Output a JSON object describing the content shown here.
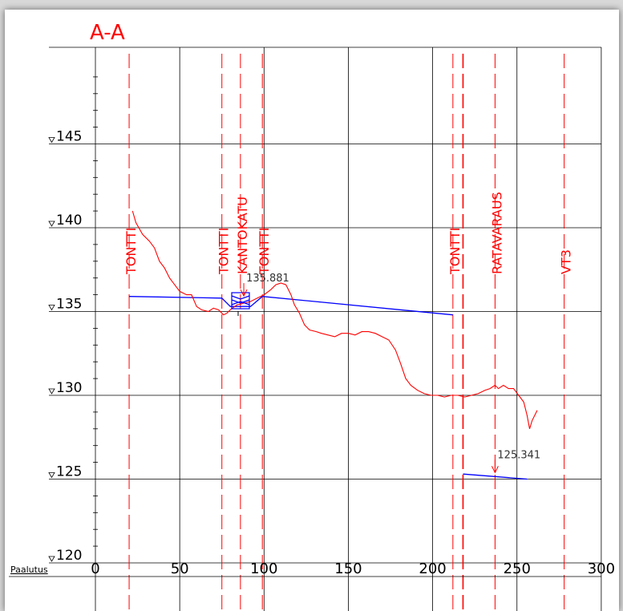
{
  "title": "A-A",
  "colors": {
    "grid": "#000000",
    "terrain": "#ff0000",
    "plan": "#0000ff",
    "boundary": "#ff0000",
    "text": "#000000"
  },
  "chart_data": {
    "type": "line",
    "xlabel": "Paalutus",
    "xlim": [
      0,
      300
    ],
    "ylim": [
      120,
      150
    ],
    "x_ticks": [
      0,
      50,
      100,
      150,
      200,
      250,
      300
    ],
    "y_ticks": [
      120,
      125,
      130,
      135,
      140,
      145
    ],
    "grid": true,
    "boundaries": [
      {
        "x": 20,
        "label": "TONTTI"
      },
      {
        "x": 75,
        "label": "TONTTI"
      },
      {
        "x": 86,
        "label": "KANTOKATU"
      },
      {
        "x": 99,
        "label": "TONTTI"
      },
      {
        "x": 212,
        "label": "TONTTI"
      },
      {
        "x": 218,
        "label": ""
      },
      {
        "x": 237,
        "label": "RATAVARAUS"
      },
      {
        "x": 278,
        "label": "VT3"
      }
    ],
    "annotations": [
      {
        "label": "135.881",
        "x": 88,
        "y": 135.881
      },
      {
        "label": "125.341",
        "x": 237,
        "y": 125.341
      }
    ],
    "series": [
      {
        "values": [
          [
            22,
            141
          ],
          [
            24,
            140.3
          ],
          [
            28,
            139.6
          ],
          [
            32,
            139.2
          ],
          [
            35,
            138.8
          ],
          [
            38,
            138.0
          ],
          [
            41,
            137.6
          ],
          [
            44,
            137.0
          ],
          [
            47,
            136.6
          ],
          [
            50,
            136.2
          ],
          [
            54,
            136.0
          ],
          [
            57,
            136.0
          ],
          [
            60,
            135.3
          ],
          [
            63,
            135.1
          ],
          [
            67,
            135.0
          ],
          [
            70,
            135.2
          ],
          [
            73,
            135.1
          ],
          [
            76,
            134.8
          ],
          [
            78,
            134.9
          ],
          [
            80,
            135.1
          ],
          [
            84,
            135.4
          ],
          [
            88,
            135.5
          ],
          [
            92,
            135.6
          ],
          [
            96,
            135.8
          ],
          [
            100,
            136.0
          ],
          [
            104,
            136.3
          ],
          [
            107,
            136.6
          ],
          [
            110,
            136.7
          ],
          [
            113,
            136.6
          ],
          [
            116,
            136.0
          ],
          [
            118,
            135.4
          ],
          [
            121,
            134.9
          ],
          [
            124,
            134.2
          ],
          [
            127,
            133.9
          ],
          [
            131,
            133.8
          ],
          [
            134,
            133.7
          ],
          [
            138,
            133.6
          ],
          [
            142,
            133.5
          ],
          [
            146,
            133.7
          ],
          [
            150,
            133.7
          ],
          [
            154,
            133.6
          ],
          [
            158,
            133.8
          ],
          [
            162,
            133.8
          ],
          [
            166,
            133.7
          ],
          [
            170,
            133.5
          ],
          [
            174,
            133.3
          ],
          [
            178,
            132.7
          ],
          [
            181,
            131.9
          ],
          [
            184,
            131.0
          ],
          [
            187,
            130.6
          ],
          [
            191,
            130.3
          ],
          [
            195,
            130.1
          ],
          [
            199,
            130.0
          ],
          [
            203,
            130.0
          ],
          [
            207,
            129.9
          ],
          [
            211,
            130.0
          ],
          [
            215,
            130.0
          ],
          [
            219,
            129.9
          ],
          [
            223,
            130.0
          ],
          [
            227,
            130.1
          ],
          [
            231,
            130.3
          ],
          [
            234,
            130.4
          ],
          [
            237,
            130.6
          ],
          [
            239,
            130.4
          ],
          [
            242,
            130.6
          ],
          [
            245,
            130.4
          ],
          [
            248,
            130.4
          ],
          [
            251,
            130.0
          ],
          [
            254,
            129.6
          ],
          [
            256,
            128.8
          ],
          [
            257.5,
            128.0
          ],
          [
            259,
            128.5
          ],
          [
            262,
            129.1
          ]
        ]
      },
      {
        "values": [
          [
            20,
            135.9
          ],
          [
            75,
            135.8
          ],
          [
            80,
            135.3
          ],
          [
            92,
            135.3
          ],
          [
            99,
            135.9
          ],
          [
            212,
            134.8
          ]
        ]
      },
      {
        "values": [
          [
            218,
            125.3
          ],
          [
            256,
            125.0
          ]
        ]
      }
    ]
  }
}
